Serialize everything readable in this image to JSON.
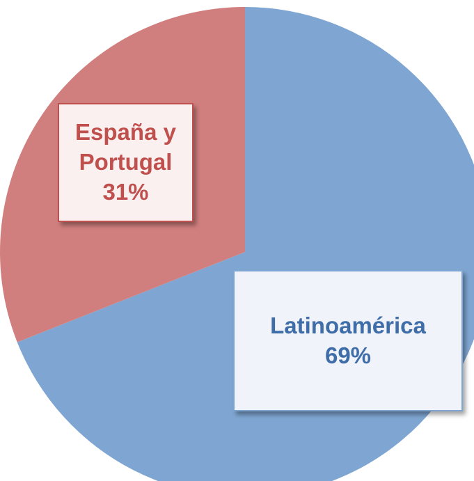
{
  "chart_data": {
    "type": "pie",
    "categories": [
      "Latinoamérica",
      "España y Portugal"
    ],
    "values": [
      69,
      31
    ],
    "value_labels": [
      "69%",
      "31%"
    ],
    "colors": [
      "#7fa6d2",
      "#d17f7e"
    ],
    "start_angle": 0,
    "direction": "clockwise"
  }
}
